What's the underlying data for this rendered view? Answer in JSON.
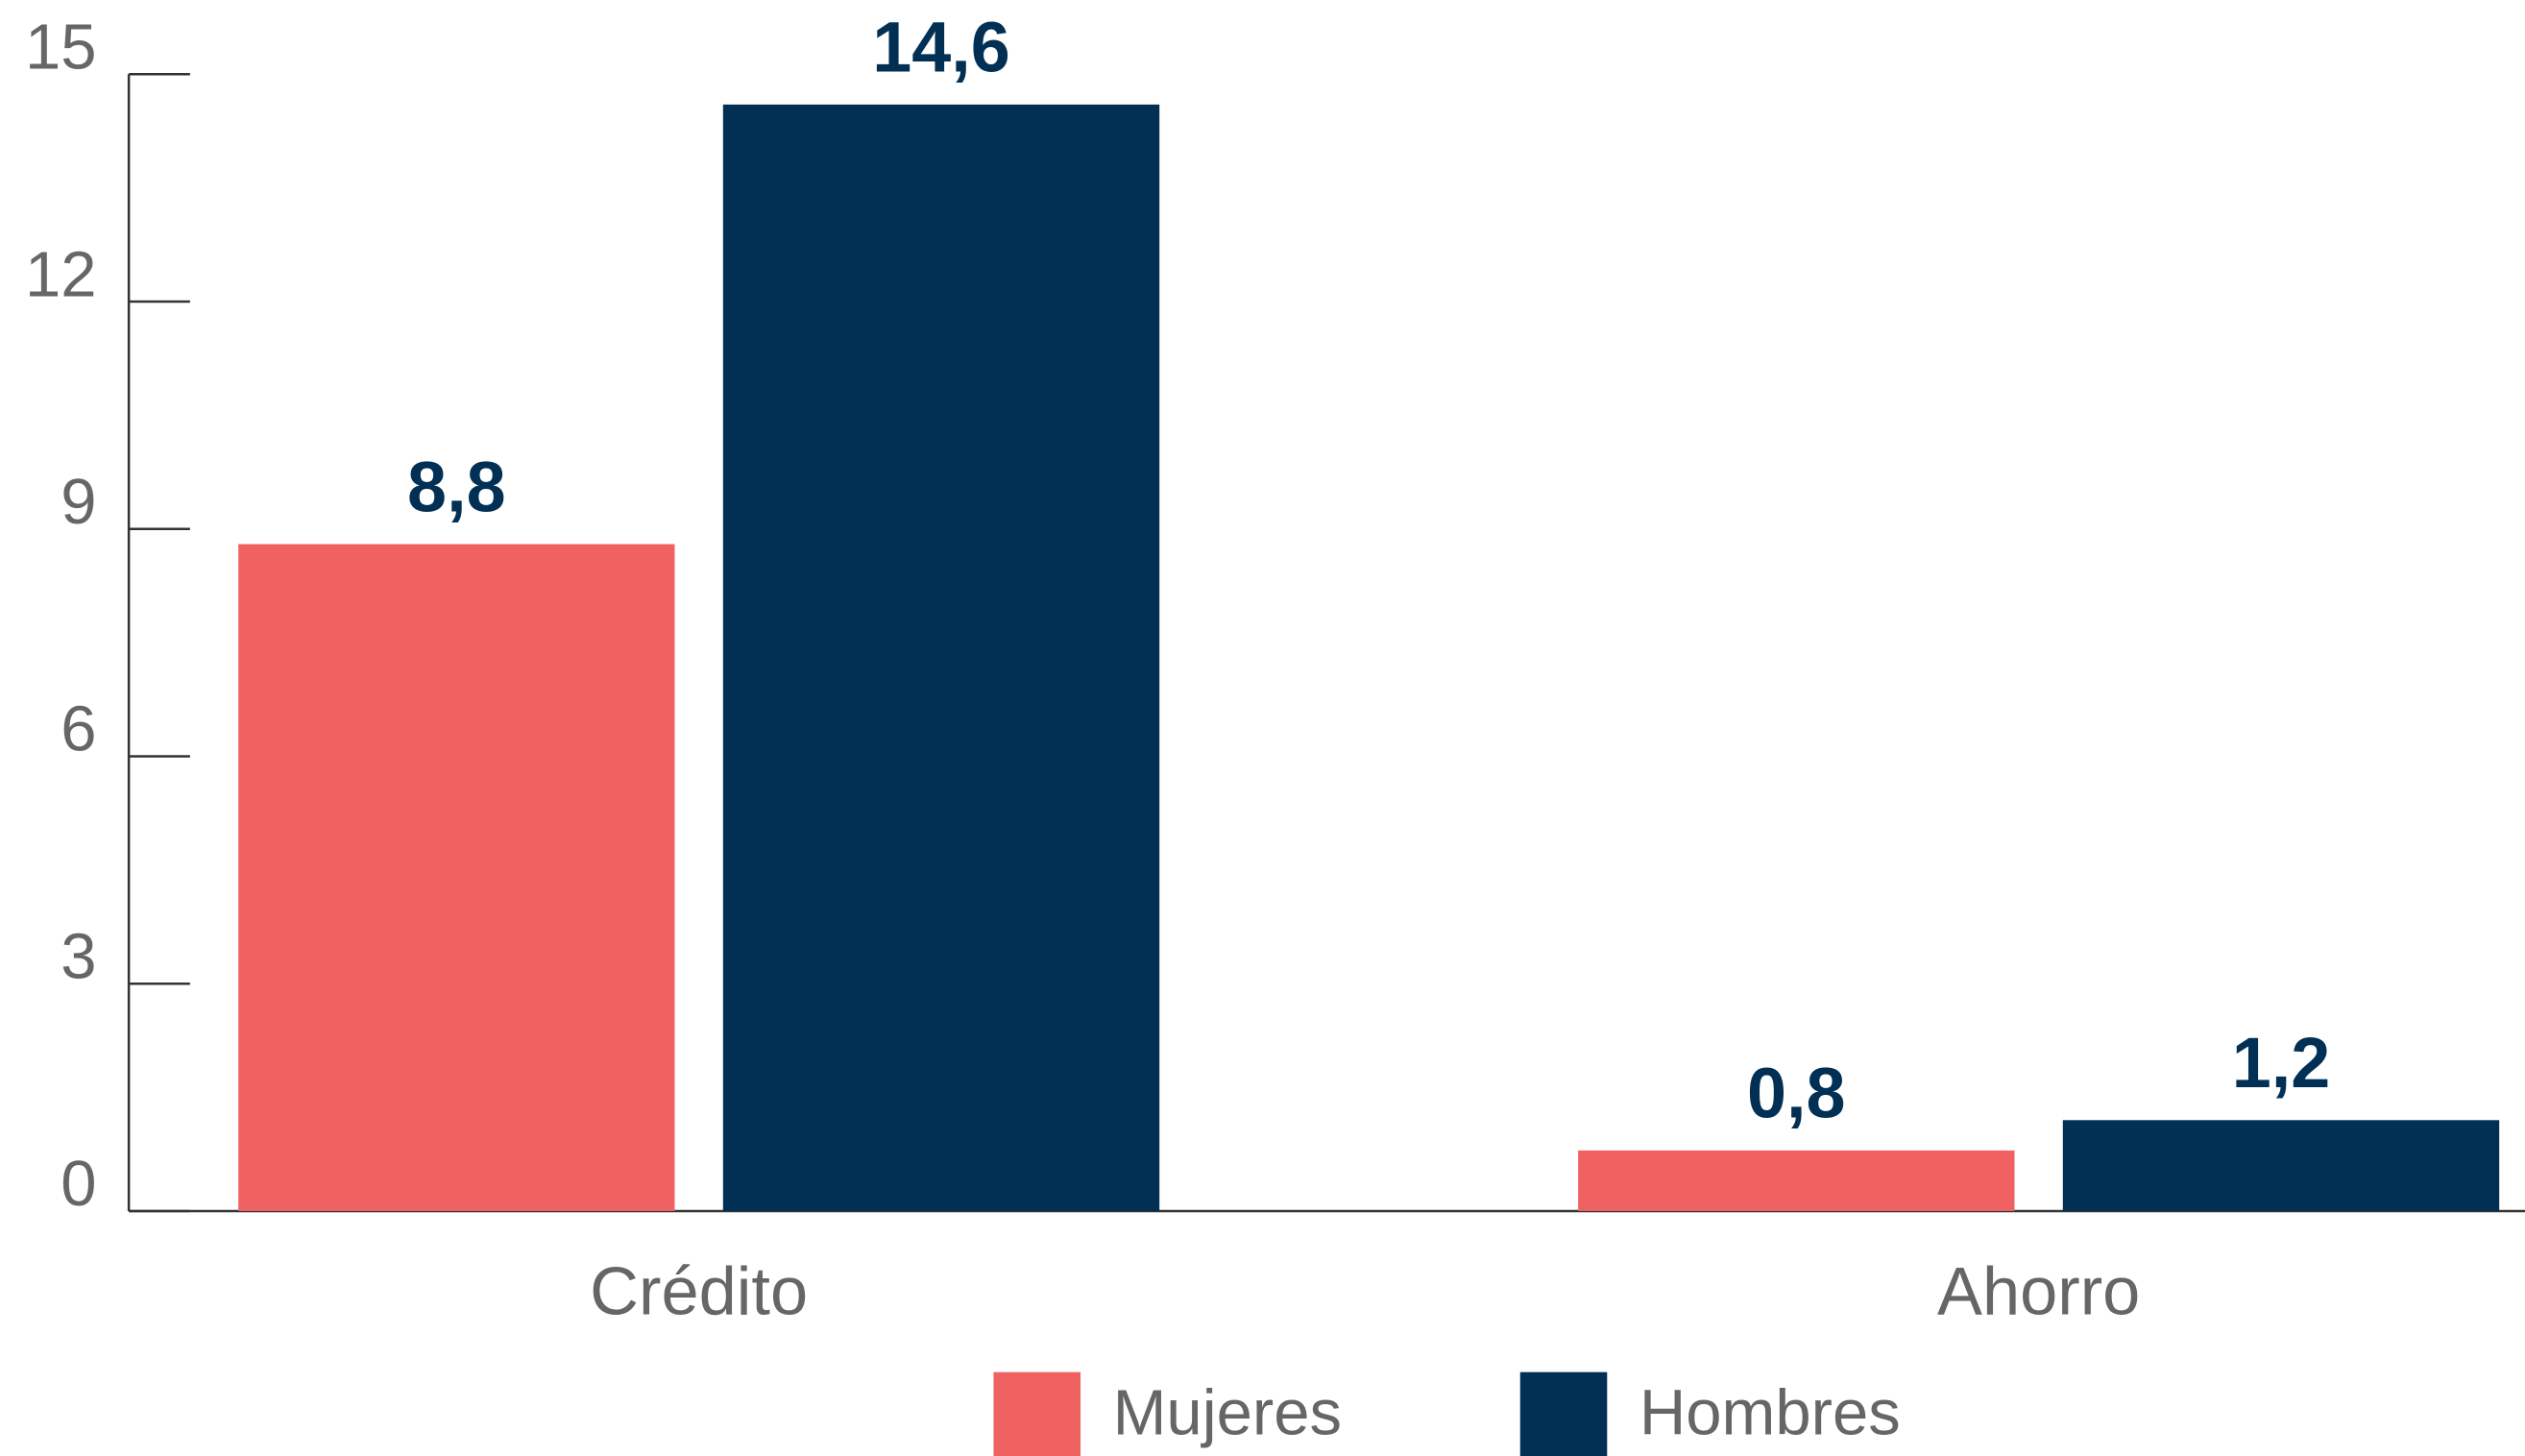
{
  "chart_data": {
    "type": "bar",
    "categories": [
      "Crédito",
      "Ahorro"
    ],
    "series": [
      {
        "name": "Mujeres",
        "color": "#f06262",
        "values": [
          8.8,
          0.8
        ],
        "value_labels": [
          "8,8",
          "0,8"
        ]
      },
      {
        "name": "Hombres",
        "color": "#023054",
        "values": [
          14.6,
          1.2
        ],
        "value_labels": [
          "14,6",
          "1,2"
        ]
      }
    ],
    "ylim": [
      0,
      15
    ],
    "yticks": [
      0,
      3,
      6,
      9,
      12,
      15
    ],
    "legend": "bottom"
  }
}
